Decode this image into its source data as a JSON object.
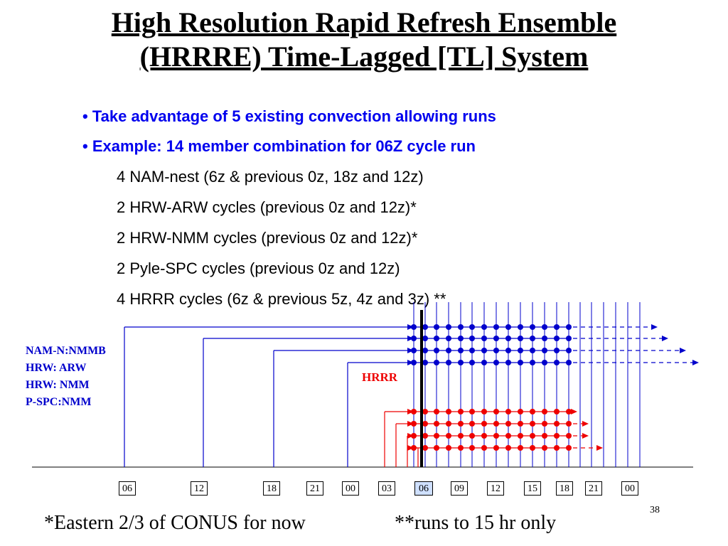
{
  "title": {
    "line1": "High Resolution Rapid Refresh Ensemble",
    "line2": "(HRRRE) Time-Lagged [TL] System"
  },
  "bullets": [
    "• Take advantage of 5 existing convection allowing runs",
    "• Example: 14 member combination for 06Z cycle run"
  ],
  "sub_items": [
    "4  NAM-nest (6z & previous 0z, 18z and 12z)",
    "2  HRW-ARW cycles (previous 0z and 12z)*",
    "2  HRW-NMM cycles (previous 0z and 12z)*",
    "2  Pyle-SPC cycles (previous 0z and 12z)",
    "4 HRRR cycles (6z & previous 5z, 4z and 3z) **"
  ],
  "model_labels": [
    "NAM-N:NMMB",
    "HRW: ARW",
    "HRW: NMM",
    "P-SPC:NMM"
  ],
  "hrrr_label": "HRRR",
  "timeline_ticks": [
    "06",
    "12",
    "18",
    "21",
    "00",
    "03",
    "06",
    "09",
    "12",
    "15",
    "18",
    "21",
    "00"
  ],
  "active_tick": 6,
  "footnote_left": "*Eastern 2/3 of CONUS for now",
  "footnote_right": "**runs to 15 hr only",
  "page_number": "38",
  "colors": {
    "blue": "#0000cc",
    "red": "#ee0000",
    "now_line": "#000000",
    "active_tick_bg": "#cfe0ff"
  }
}
